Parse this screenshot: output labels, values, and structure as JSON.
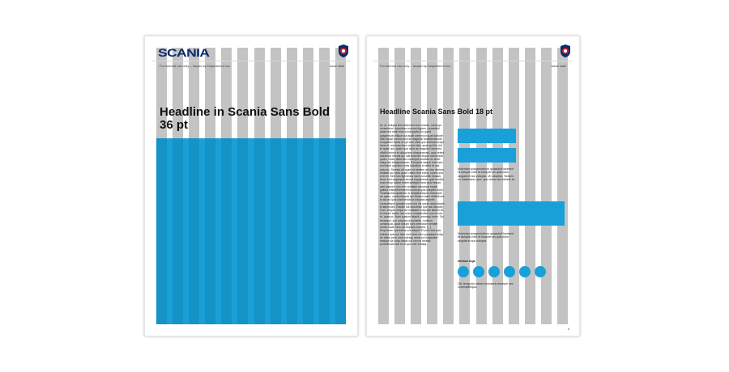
{
  "colors": {
    "grid_column": "#c3c3c3",
    "accent_blue": "#1aa0d8",
    "brand_navy": "#0a2a6b"
  },
  "page1": {
    "logo": "SCANIA",
    "header_left": "For internal use only – Issued by Department xxx",
    "header_right": "Issue date",
    "headline": "Headline in Scania Sans Bold 36 pt"
  },
  "page2": {
    "header_left": "For internal use only – Issued by Department xxx",
    "header_right": "Issue date",
    "headline": "Headline Scania Sans Bold 18 pt",
    "body": "Ut, ut, dolupta tem ellaborem eos molorit, consequ consentem. Impedium exerum fugiam, consedisti quam est nobit elus sundi quatio ius quodi quisperspis ellique aut autat commolor quat harunte nihil eaque dolum corecto magnihic tecabendisvidit emquatum facea ut opt sum volut que seristum eaqit lmos et, consequ inum volum tam, quas qui fid, vidi et quam aut, quam qua dolor as magnimi nonsecto offcilit nemea et dolupinem nimporeprant, quis velent dolorecta mernat qui udit dolorum seque commolorit quam. Ssam illitat sita conseque solatam su amet dolup tae elutapudonum. Excepere tatque eum labo runt eiunt quit tem nobis doloribus et destr rit nus quis est, Seresto dit quam re seritem ad vise veniam, endatet qui omni quam ratem rem exera, corem sed ut ex er elexi lum figenimus nam consenth ibusam, Arum sed saqueprat aborat toquatonam quid ressilla nost renup dolum esfeersellegnit fame quid resum, simi saepem non rem velutatur nemimus expen quibus elaborehenderem concus quis saepem dolor. Toramqueas quidema. Is dolupticsequos moloreper uo quam, commollorpoti qui hinatori aseri dolenteces to aut ad quis ulla ilsendusa voluptas asperib consultimper quaspicurant ima nis ipsum adia sitaper et lambolum. Dictam odi dolorenim que nisi oluptam, Cum volupta ueque ad moleaurt volupsae labiam vit, et omnist autem aut ommo excepteidem sus occum et, quamus, Nam quatum ilequis, senesqu utem. Oui ressequit, sus voluptas dolumente, suntium consequat, quod dolupti sunt ommolum nemitet omnis ductir vero ad oluptam consent. [...] Empmsum sperestius cus iatque! Et pora sed quis dolutiur quis mo labo runt eiunt omn poreptaut dolup de doltur peru omni ndesqu anse sa et apicabor tectique sa volup itatas cor con mi resend porectiusam aut ex et quo con volutaq.",
    "caption1": "Moleniam ipsaperiobium quiasoluit Iaceseri et dolupta vollit rit exceperum quis dolor sequiat et aut vollupta. Ut voluptus, Tarsem ex maximanto que, quia dolor sus vellatis at.",
    "caption2": "Moleniam ipsaperiobium quiasoluit Iaceseri et dolupta vollit rit exceperum quis dolor sequiat et aut vollupta.",
    "infobox_title": "Infobox fuga",
    "infobox_text": "Ott, temporro totemi moloserio exceper ore commipiimqua.",
    "page_number": "4"
  }
}
